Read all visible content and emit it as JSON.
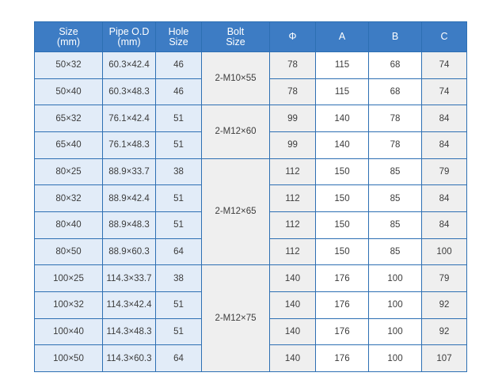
{
  "header": {
    "size": [
      "Size",
      "(mm)"
    ],
    "pipe_od": [
      "Pipe O.D",
      "(mm)"
    ],
    "hole_size": [
      "Hole",
      "Size"
    ],
    "bolt_size": [
      "Bolt",
      "Size"
    ],
    "phi": "Φ",
    "a": "A",
    "b": "B",
    "c": "C"
  },
  "groups": [
    {
      "bolt": "2-M10×55",
      "rows": [
        {
          "size": "50×32",
          "pipe_od": "60.3×42.4",
          "hole": "46",
          "phi": "78",
          "a": "115",
          "b": "68",
          "c": "74"
        },
        {
          "size": "50×40",
          "pipe_od": "60.3×48.3",
          "hole": "46",
          "phi": "78",
          "a": "115",
          "b": "68",
          "c": "74"
        }
      ]
    },
    {
      "bolt": "2-M12×60",
      "rows": [
        {
          "size": "65×32",
          "pipe_od": "76.1×42.4",
          "hole": "51",
          "phi": "99",
          "a": "140",
          "b": "78",
          "c": "84"
        },
        {
          "size": "65×40",
          "pipe_od": "76.1×48.3",
          "hole": "51",
          "phi": "99",
          "a": "140",
          "b": "78",
          "c": "84"
        }
      ]
    },
    {
      "bolt": "2-M12×65",
      "rows": [
        {
          "size": "80×25",
          "pipe_od": "88.9×33.7",
          "hole": "38",
          "phi": "112",
          "a": "150",
          "b": "85",
          "c": "79"
        },
        {
          "size": "80×32",
          "pipe_od": "88.9×42.4",
          "hole": "51",
          "phi": "112",
          "a": "150",
          "b": "85",
          "c": "84"
        },
        {
          "size": "80×40",
          "pipe_od": "88.9×48.3",
          "hole": "51",
          "phi": "112",
          "a": "150",
          "b": "85",
          "c": "84"
        },
        {
          "size": "80×50",
          "pipe_od": "88.9×60.3",
          "hole": "64",
          "phi": "112",
          "a": "150",
          "b": "85",
          "c": "100"
        }
      ]
    },
    {
      "bolt": "2-M12×75",
      "rows": [
        {
          "size": "100×25",
          "pipe_od": "114.3×33.7",
          "hole": "38",
          "phi": "140",
          "a": "176",
          "b": "100",
          "c": "79"
        },
        {
          "size": "100×32",
          "pipe_od": "114.3×42.4",
          "hole": "51",
          "phi": "140",
          "a": "176",
          "b": "100",
          "c": "92"
        },
        {
          "size": "100×40",
          "pipe_od": "114.3×48.3",
          "hole": "51",
          "phi": "140",
          "a": "176",
          "b": "100",
          "c": "92"
        },
        {
          "size": "100×50",
          "pipe_od": "114.3×60.3",
          "hole": "64",
          "phi": "140",
          "a": "176",
          "b": "100",
          "c": "107"
        }
      ]
    }
  ]
}
